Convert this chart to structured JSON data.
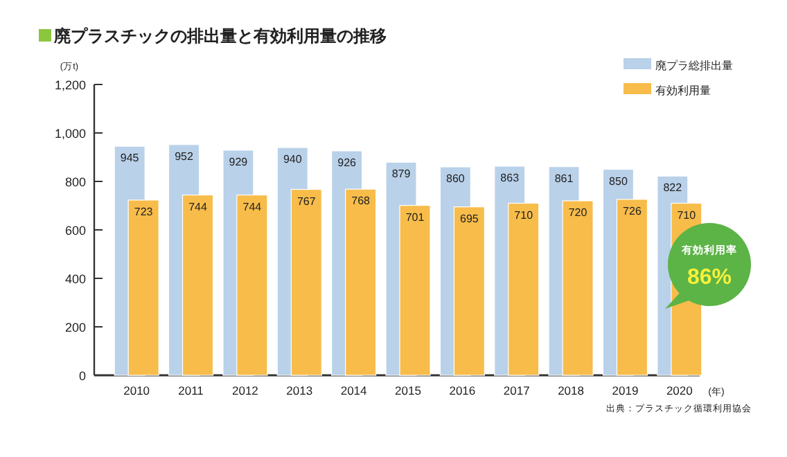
{
  "chart_data": {
    "type": "bar",
    "title": "廃プラスチックの排出量と有効利用量の推移",
    "ylabel": "(万t)",
    "xlabel": "(年)",
    "categories": [
      "2010",
      "2011",
      "2012",
      "2013",
      "2014",
      "2015",
      "2016",
      "2017",
      "2018",
      "2019",
      "2020"
    ],
    "series": [
      {
        "name": "廃プラ総排出量",
        "color": "#b9d1e9",
        "values": [
          945,
          952,
          929,
          940,
          926,
          879,
          860,
          863,
          861,
          850,
          822
        ]
      },
      {
        "name": "有効利用量",
        "color": "#f7bc4a",
        "values": [
          723,
          744,
          744,
          767,
          768,
          701,
          695,
          710,
          720,
          726,
          710
        ]
      }
    ],
    "ylim": [
      0,
      1200
    ],
    "yticks": [
      0,
      200,
      400,
      600,
      800,
      {
        "value": 1000,
        "label": "1,000"
      },
      {
        "value": 1200,
        "label": "1,200"
      }
    ],
    "data_labels": true,
    "legend": "top right",
    "annotations": [
      "有効利用率 86%",
      "出典：プラスチック循環利用協会"
    ]
  }
}
